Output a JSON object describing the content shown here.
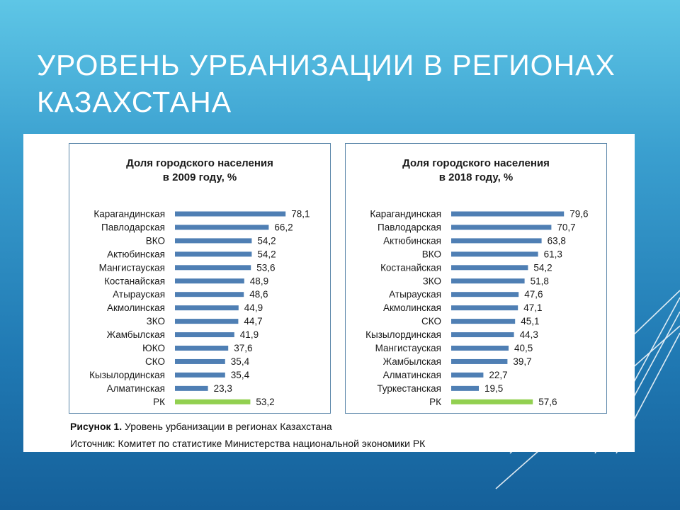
{
  "slide": {
    "title_line1": "УРОВЕНЬ УРБАНИЗАЦИИ В РЕГИОНАХ",
    "title_line2": "КАЗАХСТАНА"
  },
  "caption": {
    "figure_label": "Рисунок 1.",
    "figure_text": " Уровень урбанизации в регионах Казахстана",
    "source": "Источник: Комитет по статистике Министерства национальной экономики РК"
  },
  "colors": {
    "bar": "#4f7fb4",
    "highlight": "#92d050",
    "panel_border": "#5b86a9"
  },
  "chart_data": [
    {
      "type": "bar",
      "orientation": "horizontal",
      "title_line1": "Доля городского населения",
      "title_line2": "в 2009 году, %",
      "categories": [
        "Карагандинская",
        "Павлодарская",
        "ВКО",
        "Актюбинская",
        "Мангистауская",
        "Костанайская",
        "Атырауская",
        "Акмолинская",
        "ЗКО",
        "Жамбылская",
        "ЮКО",
        "СКО",
        "Кызылординская",
        "Алматинская",
        "РК"
      ],
      "values": [
        78.1,
        66.2,
        54.2,
        54.2,
        53.6,
        48.9,
        48.6,
        44.9,
        44.7,
        41.9,
        37.6,
        35.4,
        35.4,
        23.3,
        53.2
      ],
      "labels": [
        "78,1",
        "66,2",
        "54,2",
        "54,2",
        "53,6",
        "48,9",
        "48,6",
        "44,9",
        "44,7",
        "41,9",
        "37,6",
        "35,4",
        "35,4",
        "23,3",
        "53,2"
      ],
      "highlight_category": "РК",
      "xlim": [
        0,
        100
      ]
    },
    {
      "type": "bar",
      "orientation": "horizontal",
      "title_line1": "Доля городского населения",
      "title_line2": "в 2018 году, %",
      "categories": [
        "Карагандинская",
        "Павлодарская",
        "Актюбинская",
        "ВКО",
        "Костанайская",
        "ЗКО",
        "Атырауская",
        "Акмолинская",
        "СКО",
        "Кызылординская",
        "Мангистауская",
        "Жамбылская",
        "Алматинская",
        "Туркестанская",
        "РК"
      ],
      "values": [
        79.6,
        70.7,
        63.8,
        61.3,
        54.2,
        51.8,
        47.6,
        47.1,
        45.1,
        44.3,
        40.5,
        39.7,
        22.7,
        19.5,
        57.6
      ],
      "labels": [
        "79,6",
        "70,7",
        "63,8",
        "61,3",
        "54,2",
        "51,8",
        "47,6",
        "47,1",
        "45,1",
        "44,3",
        "40,5",
        "39,7",
        "22,7",
        "19,5",
        "57,6"
      ],
      "highlight_category": "РК",
      "xlim": [
        0,
        100
      ]
    }
  ]
}
